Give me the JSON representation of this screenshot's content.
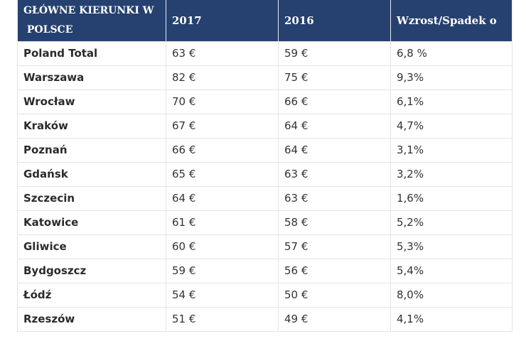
{
  "table": {
    "headers": [
      "GŁÓWNE KIERUNKI W POLSCE",
      "2017",
      "2016",
      "Wzrost/Spadek o"
    ],
    "header_first_lines": [
      "GŁÓWNE KIERUNKI W",
      " POLSCE"
    ],
    "rows": [
      [
        "Poland Total",
        "63 €",
        "59 €",
        "6,8 %"
      ],
      [
        "Warszawa",
        "82 €",
        "75 €",
        "9,3%"
      ],
      [
        "Wrocław",
        "70 €",
        "66 €",
        "6,1%"
      ],
      [
        "Kraków",
        "67 €",
        "64 €",
        "4,7%"
      ],
      [
        "Poznań",
        "66 €",
        "64 €",
        "3,1%"
      ],
      [
        "Gdańsk",
        "65 €",
        "63 €",
        "3,2%"
      ],
      [
        "Szczecin",
        "64 €",
        "63 €",
        "1,6%"
      ],
      [
        "Katowice",
        "61 €",
        "58 €",
        "5,2%"
      ],
      [
        "Gliwice",
        "60 €",
        "57 €",
        "5,3%"
      ],
      [
        "Bydgoszcz",
        "59 €",
        "56 €",
        "5,4%"
      ],
      [
        "Łódź",
        "54 €",
        "50 €",
        "8,0%"
      ],
      [
        "Rzeszów",
        "51 €",
        "49 €",
        "4,1%"
      ]
    ]
  },
  "colors": {
    "header_bg": "#26416f",
    "header_text": "#ffffff",
    "border": "#e4e4e4"
  }
}
